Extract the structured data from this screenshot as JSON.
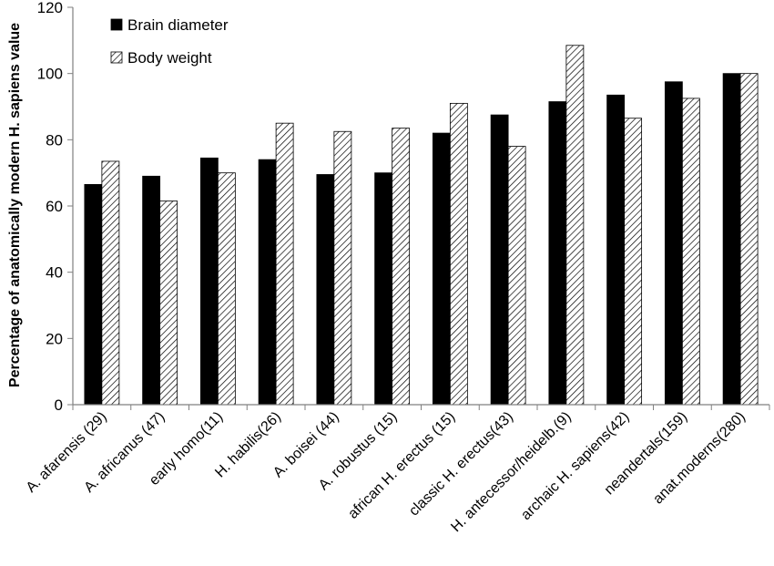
{
  "chart_data": {
    "type": "bar",
    "title": "",
    "xlabel": "",
    "ylabel": "Percentage of anatomically modern H. sapiens value",
    "ylim": [
      0,
      120
    ],
    "yticks": [
      0,
      20,
      40,
      60,
      80,
      100,
      120
    ],
    "grid": false,
    "legend_position": "top-left",
    "categories": [
      "A. afarensis (29)",
      "A. africanus (47)",
      "early homo(11)",
      "H. habilis(26)",
      "A. boisei (44)",
      "A. robustus (15)",
      "african H. erectus (15)",
      "classic H. erectus(43)",
      "H. antecessor/heidelb.(9)",
      "archaic H. sapiens(42)",
      "neandertals(159)",
      "anat.moderns(280)"
    ],
    "series": [
      {
        "name": "Brain diameter",
        "style": "solid",
        "color": "#000000",
        "values": [
          66.5,
          69,
          74.5,
          74,
          69.5,
          70,
          82,
          87.5,
          91.5,
          93.5,
          97.5,
          100
        ]
      },
      {
        "name": "Body weight",
        "style": "hatched",
        "color": "#ffffff",
        "values": [
          73.5,
          61.5,
          70,
          85,
          82.5,
          83.5,
          91,
          78,
          108.5,
          86.5,
          92.5,
          100
        ]
      }
    ]
  }
}
